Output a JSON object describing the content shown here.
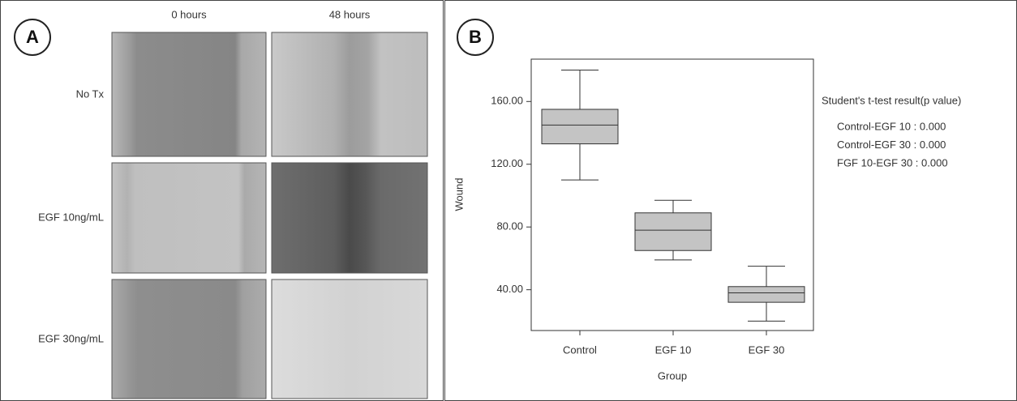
{
  "panel_a": {
    "label": "A",
    "columns": [
      "0 hours",
      "48 hours"
    ],
    "rows": [
      "No Tx",
      "EGF 10ng/mL",
      "EGF 30ng/mL"
    ]
  },
  "chart_data": {
    "type": "box",
    "panel_label": "B",
    "xlabel": "Group",
    "ylabel": "Wound",
    "categories": [
      "Control",
      "EGF 10",
      "EGF 30"
    ],
    "whisker_low": [
      110,
      59,
      20
    ],
    "q1": [
      133,
      65,
      32
    ],
    "median": [
      145,
      78,
      38
    ],
    "q3": [
      155,
      89,
      42
    ],
    "whisker_high": [
      180,
      97,
      55
    ],
    "color": "#c4c4c4",
    "ylim": [
      14,
      187
    ],
    "yticks": [
      {
        "value": 40,
        "label": "40.00"
      },
      {
        "value": 80,
        "label": "80.00"
      },
      {
        "value": 120,
        "label": "120.00"
      },
      {
        "value": 160,
        "label": "160.00"
      }
    ],
    "annotation_title": "Student's t-test result(p value)",
    "annotations": [
      "Control-EGF 10 : 0.000",
      "Control-EGF 30 : 0.000",
      "FGF 10-EGF 30 : 0.000"
    ]
  }
}
